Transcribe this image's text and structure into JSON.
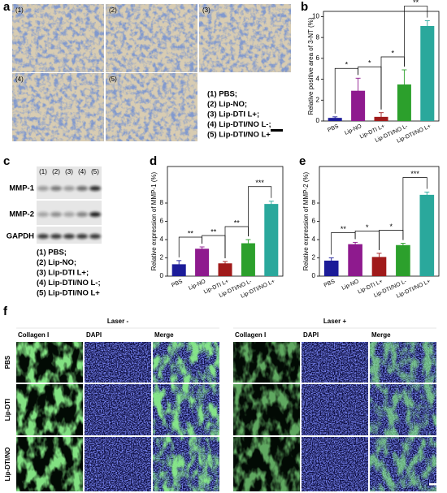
{
  "panel_labels": [
    "a",
    "b",
    "c",
    "d",
    "e",
    "f"
  ],
  "panel_a": {
    "image_labels": [
      "(1)",
      "(2)",
      "(3)",
      "(4)",
      "(5)"
    ],
    "legend": [
      "(1) PBS;",
      "(2) Lip-NO;",
      "(3) Lip-DTI L+;",
      "(4) Lip-DTI/NO L-;",
      "(5) Lip-DTI/NO L+"
    ]
  },
  "panel_c": {
    "lanes": [
      "(1)",
      "(2)",
      "(3)",
      "(4)",
      "(5)"
    ],
    "rows": [
      "MMP-1",
      "MMP-2",
      "GAPDH"
    ],
    "legend": [
      "(1) PBS;",
      "(2) Lip-NO;",
      "(3) Lip-DTI L+;",
      "(4) Lip-DTI/NO L-;",
      "(5) Lip-DTI/NO L+"
    ]
  },
  "panel_f": {
    "groups": [
      "Laser -",
      "Laser +"
    ],
    "columns": [
      "Collagen I",
      "DAPI",
      "Merge"
    ],
    "rows": [
      "PBS",
      "Lip-DTI",
      "Lip-DTI/NO"
    ]
  },
  "chart_data": [
    {
      "type": "bar",
      "y_label": "Relative positive area of 3-NT (%)",
      "categories": [
        "PBS",
        "Lip-NO",
        "Lip-DTI L+",
        "Lip-DTI/NO L-",
        "Lip-DTI/NO L+"
      ],
      "values": [
        0.3,
        2.9,
        0.4,
        3.5,
        9.1
      ],
      "errors": [
        0.1,
        1.2,
        0.4,
        1.4,
        0.5
      ],
      "colors": [
        "#1c1c99",
        "#8e1a8e",
        "#a01a1a",
        "#2ca02c",
        "#2aa89c"
      ],
      "significance": [
        "*",
        "*",
        "*",
        "**"
      ],
      "ylim": [
        0,
        10.5
      ],
      "yticks": [
        0,
        2,
        4,
        6,
        8,
        10
      ]
    },
    {
      "type": "bar",
      "y_label": "Relative expression of MMP-1 (%)",
      "categories": [
        "PBS",
        "Lip-NO",
        "Lip-DTI L+",
        "Lip-DTI/NO L-",
        "Lip-DTI/NO L+"
      ],
      "values": [
        1.3,
        3.0,
        1.4,
        3.6,
        7.9
      ],
      "errors": [
        0.4,
        0.2,
        0.2,
        0.4,
        0.3
      ],
      "colors": [
        "#1c1c99",
        "#8e1a8e",
        "#a01a1a",
        "#2ca02c",
        "#2aa89c"
      ],
      "significance": [
        "**",
        "**",
        "**",
        "***"
      ],
      "ylim": [
        0,
        12
      ],
      "yticks": [
        0,
        2,
        4,
        6,
        8
      ]
    },
    {
      "type": "bar",
      "y_label": "Relative expression of MMP-2 (%)",
      "categories": [
        "PBS",
        "Lip-NO",
        "Lip-DTI L+",
        "Lip-DTI/NO L-",
        "Lip-DTI/NO L+"
      ],
      "values": [
        1.7,
        3.5,
        2.1,
        3.4,
        8.9
      ],
      "errors": [
        0.3,
        0.2,
        0.4,
        0.2,
        0.3
      ],
      "colors": [
        "#1c1c99",
        "#8e1a8e",
        "#a01a1a",
        "#2ca02c",
        "#2aa89c"
      ],
      "significance": [
        "**",
        "*",
        "*",
        "***"
      ],
      "ylim": [
        0,
        12
      ],
      "yticks": [
        0,
        2,
        4,
        6,
        8
      ]
    }
  ]
}
